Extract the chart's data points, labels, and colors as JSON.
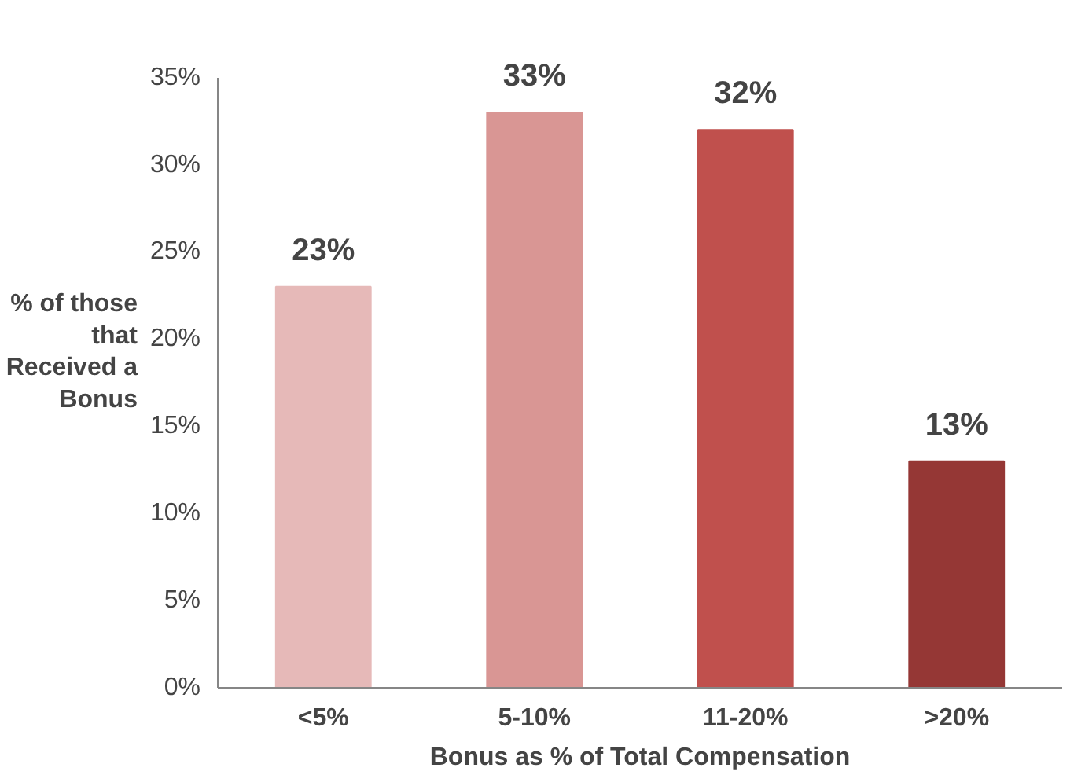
{
  "chart_data": {
    "type": "bar",
    "xlabel": "Bonus as % of Total Compensation",
    "ylabel": "% of those\nthat\nReceived a\nBonus",
    "categories": [
      "<5%",
      "5-10%",
      "11-20%",
      ">20%"
    ],
    "values": [
      23,
      33,
      32,
      13
    ],
    "colors": [
      "#e6b9b8",
      "#d99694",
      "#c0504d",
      "#953735"
    ],
    "ylim": [
      0,
      35
    ],
    "yticks": [
      {
        "value": 0,
        "label": "0%"
      },
      {
        "value": 5,
        "label": "5%"
      },
      {
        "value": 10,
        "label": "10%"
      },
      {
        "value": 15,
        "label": "15%"
      },
      {
        "value": 20,
        "label": "20%"
      },
      {
        "value": 25,
        "label": "25%"
      },
      {
        "value": 30,
        "label": "30%"
      },
      {
        "value": 35,
        "label": "35%"
      }
    ],
    "grid": false,
    "value_labels": [
      "23%",
      "33%",
      "32%",
      "13%"
    ]
  }
}
